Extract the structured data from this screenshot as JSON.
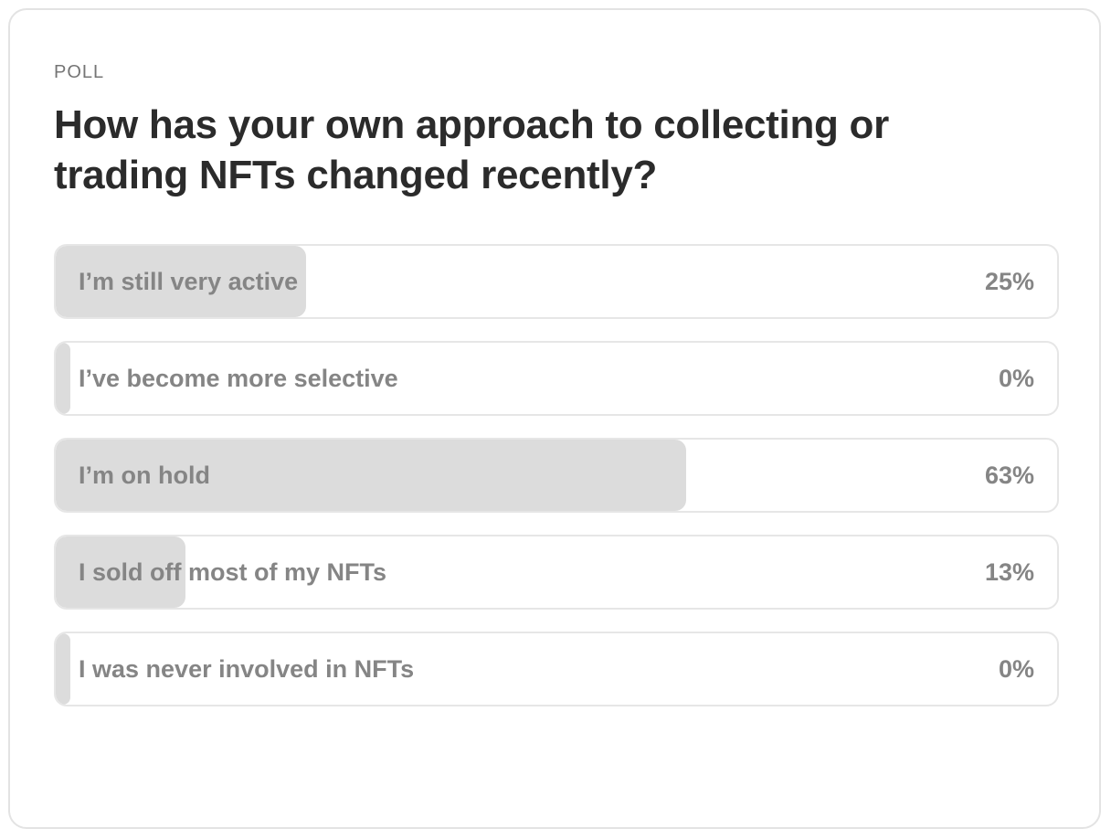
{
  "poll": {
    "eyebrow": "POLL",
    "question": "How has your own approach to collecting or trading NFTs changed recently?",
    "options": [
      {
        "label": "I’m still very active",
        "percent_text": "25%",
        "fraction": 0.25
      },
      {
        "label": "I’ve become more selective",
        "percent_text": "0%",
        "fraction": 0
      },
      {
        "label": "I’m on hold",
        "percent_text": "63%",
        "fraction": 0.63
      },
      {
        "label": "I sold off most of my NFTs",
        "percent_text": "13%",
        "fraction": 0.13
      },
      {
        "label": "I was never involved in NFTs",
        "percent_text": "0%",
        "fraction": 0
      }
    ]
  },
  "colors": {
    "fill": "#dcdcdc",
    "border": "#e6e6e6",
    "text_muted": "#858585",
    "heading": "#2b2b2b"
  }
}
